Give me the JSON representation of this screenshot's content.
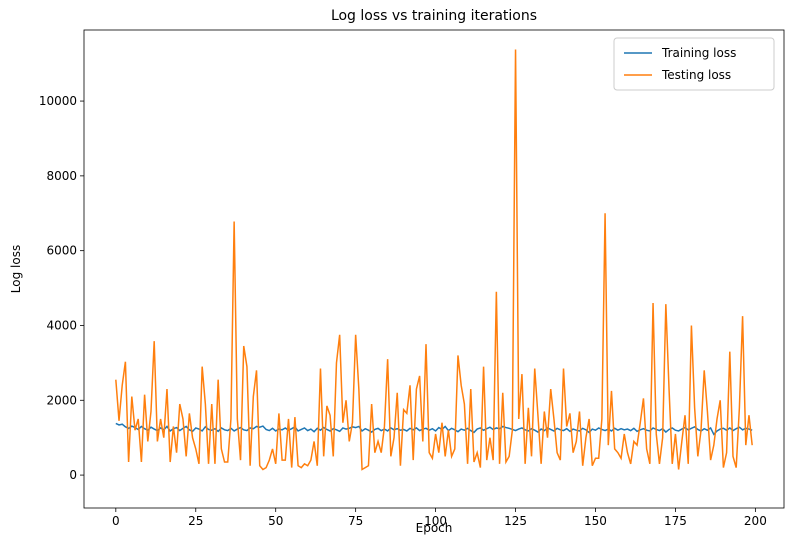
{
  "chart_data": {
    "type": "line",
    "title": "Log loss vs training iterations",
    "xlabel": "Epoch",
    "ylabel": "Log loss",
    "xlim": [
      -9.95,
      208.95
    ],
    "ylim": [
      -880,
      11900
    ],
    "xticks": [
      0,
      25,
      50,
      75,
      100,
      125,
      150,
      175,
      200
    ],
    "yticks": [
      0,
      2000,
      4000,
      6000,
      8000,
      10000
    ],
    "legend": "upper right",
    "series": [
      {
        "name": "Training loss",
        "color": "#1f77b4",
        "values": [
          1380,
          1340,
          1360,
          1290,
          1250,
          1310,
          1270,
          1220,
          1300,
          1240,
          1200,
          1280,
          1230,
          1190,
          1260,
          1210,
          1300,
          1180,
          1240,
          1270,
          1190,
          1250,
          1300,
          1210,
          1170,
          1260,
          1230,
          1180,
          1290,
          1220,
          1200,
          1240,
          1170,
          1260,
          1210,
          1190,
          1250,
          1180,
          1230,
          1270,
          1210,
          1190,
          1260,
          1240,
          1300,
          1280,
          1310,
          1220,
          1190,
          1250,
          1180,
          1230,
          1210,
          1260,
          1200,
          1240,
          1290,
          1180,
          1220,
          1260,
          1190,
          1230,
          1160,
          1250,
          1200,
          1270,
          1220,
          1180,
          1240,
          1210,
          1170,
          1260,
          1230,
          1250,
          1290,
          1270,
          1300,
          1180,
          1240,
          1200,
          1150,
          1220,
          1250,
          1190,
          1230,
          1180,
          1260,
          1210,
          1240,
          1200,
          1220,
          1180,
          1250,
          1210,
          1260,
          1190,
          1230,
          1250,
          1200,
          1240,
          1180,
          1270,
          1220,
          1300,
          1190,
          1250,
          1210,
          1160,
          1230,
          1200,
          1250,
          1190,
          1140,
          1230,
          1260,
          1200,
          1240,
          1280,
          1220,
          1260,
          1240,
          1300,
          1270,
          1250,
          1220,
          1190,
          1230,
          1260,
          1210,
          1180,
          1240,
          1200,
          1150,
          1230,
          1190,
          1260,
          1220,
          1180,
          1250,
          1210,
          1190,
          1240,
          1170,
          1230,
          1200,
          1180,
          1250,
          1210,
          1140,
          1230,
          1200,
          1260,
          1220,
          1190,
          1230,
          1180,
          1250,
          1200,
          1240,
          1210,
          1230,
          1190,
          1250,
          1170,
          1210,
          1240,
          1200,
          1180,
          1260,
          1220,
          1190,
          1240,
          1150,
          1220,
          1260,
          1200,
          1180,
          1230,
          1270,
          1210,
          1250,
          1290,
          1220,
          1180,
          1240,
          1200,
          1260,
          1090,
          1180,
          1230,
          1250,
          1200,
          1260,
          1190,
          1240,
          1280,
          1210,
          1250,
          1230,
          1200
        ]
      },
      {
        "name": "Testing loss",
        "color": "#ff7f0e",
        "values": [
          2550,
          1450,
          2400,
          3030,
          350,
          2100,
          1200,
          1500,
          350,
          2150,
          900,
          1700,
          3580,
          900,
          1500,
          1000,
          2300,
          350,
          1300,
          600,
          1900,
          1500,
          500,
          1650,
          1000,
          700,
          300,
          2900,
          1900,
          300,
          1900,
          300,
          2550,
          700,
          350,
          350,
          1500,
          6780,
          1500,
          400,
          3450,
          2900,
          250,
          2100,
          2800,
          250,
          150,
          200,
          400,
          700,
          300,
          1650,
          400,
          400,
          1500,
          200,
          1550,
          250,
          200,
          300,
          250,
          400,
          900,
          250,
          2850,
          500,
          1850,
          1600,
          500,
          3000,
          3750,
          1400,
          2000,
          900,
          1400,
          3750,
          2300,
          150,
          200,
          250,
          1900,
          600,
          900,
          600,
          1300,
          3100,
          500,
          1000,
          2200,
          250,
          1750,
          1650,
          2400,
          400,
          2300,
          2650,
          900,
          3500,
          600,
          450,
          1100,
          600,
          1400,
          500,
          1200,
          500,
          700,
          3200,
          2400,
          1900,
          300,
          2300,
          350,
          600,
          200,
          2900,
          400,
          1000,
          400,
          4900,
          300,
          2200,
          350,
          500,
          1200,
          11380,
          1500,
          2700,
          300,
          1800,
          500,
          2850,
          1600,
          300,
          1700,
          1000,
          2300,
          1500,
          600,
          400,
          2850,
          1300,
          1650,
          600,
          900,
          1700,
          250,
          1000,
          1500,
          250,
          450,
          450,
          1500,
          7000,
          800,
          2250,
          700,
          600,
          450,
          1100,
          600,
          300,
          900,
          800,
          1400,
          2050,
          700,
          300,
          4600,
          1100,
          300,
          1000,
          4570,
          2300,
          300,
          1100,
          150,
          900,
          1600,
          300,
          4000,
          1800,
          500,
          1200,
          2800,
          1700,
          400,
          800,
          1500,
          2000,
          200,
          600,
          3300,
          500,
          200,
          1800,
          4250,
          800,
          1600,
          800
        ]
      }
    ]
  }
}
